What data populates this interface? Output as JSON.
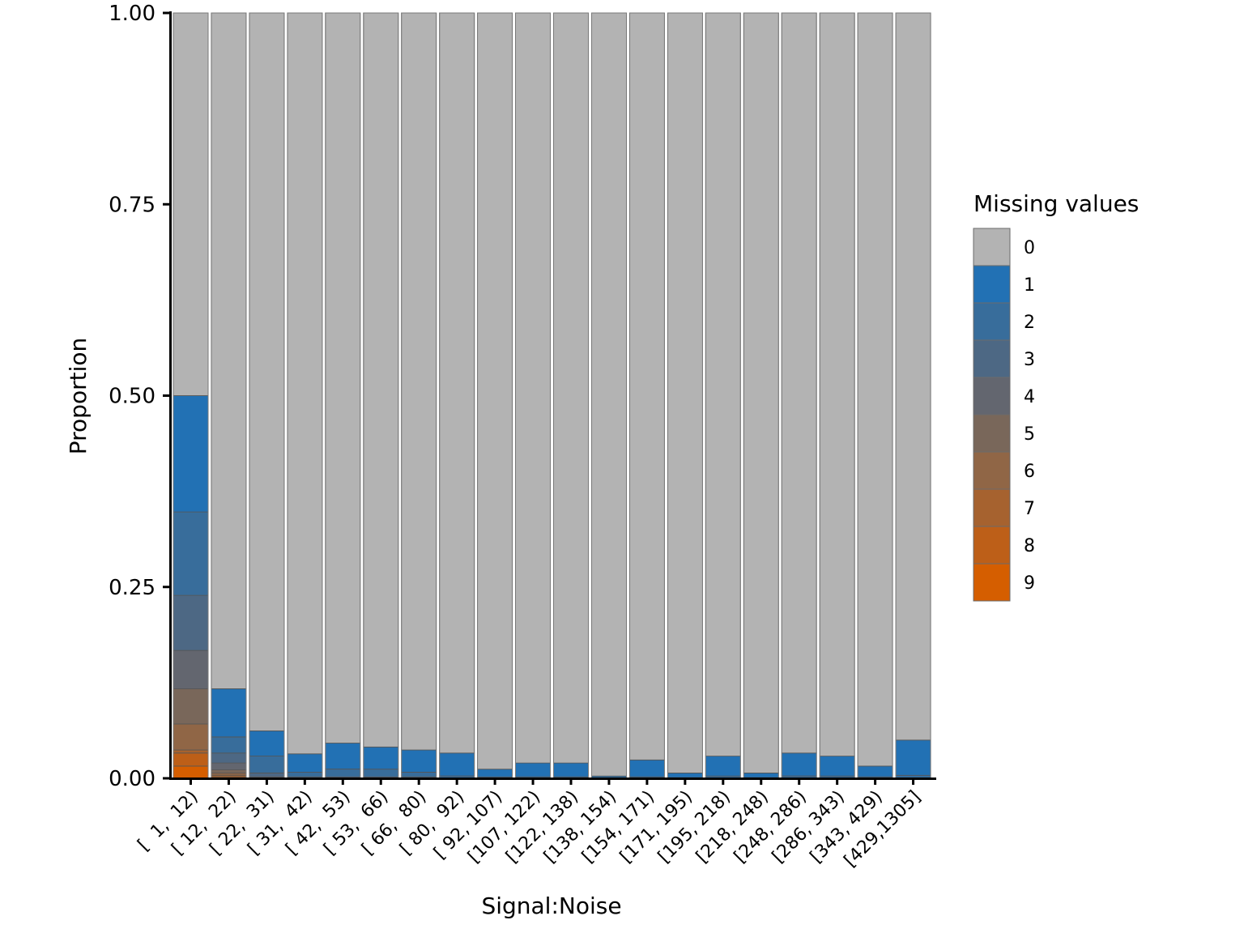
{
  "chart_data": {
    "type": "bar",
    "stacked": true,
    "normalized": true,
    "title": "",
    "xlabel": "Signal:Noise",
    "ylabel": "Proportion",
    "ylim": [
      0,
      1
    ],
    "yticks": [
      "0.00",
      "0.25",
      "0.50",
      "0.75",
      "1.00"
    ],
    "grid": false,
    "legend": {
      "title": "Missing values",
      "position": "right",
      "entries": [
        {
          "label": "0",
          "color": "#B3B3B3"
        },
        {
          "label": "1",
          "color": "#2271B4"
        },
        {
          "label": "2",
          "color": "#386D9B"
        },
        {
          "label": "3",
          "color": "#4D6884"
        },
        {
          "label": "4",
          "color": "#63666F"
        },
        {
          "label": "5",
          "color": "#79675A"
        },
        {
          "label": "6",
          "color": "#906646"
        },
        {
          "label": "7",
          "color": "#A6622F"
        },
        {
          "label": "8",
          "color": "#BD5F18"
        },
        {
          "label": "9",
          "color": "#D55E00"
        }
      ]
    },
    "categories": [
      "[  1,  12)",
      "[ 12,  22)",
      "[ 22,  31)",
      "[ 31,  42)",
      "[ 42,  53)",
      "[ 53,  66)",
      "[ 66,  80)",
      "[ 80,  92)",
      "[ 92, 107)",
      "[107, 122)",
      "[122, 138)",
      "[138, 154)",
      "[154, 171)",
      "[171, 195)",
      "[195, 218)",
      "[218, 248)",
      "[248, 286)",
      "[286, 343)",
      "[343, 429)",
      "[429,1305]"
    ],
    "series": [
      {
        "name": "0",
        "values": [
          0.5,
          0.883,
          0.938,
          0.968,
          0.954,
          0.959,
          0.963,
          0.967,
          0.988,
          0.98,
          0.98,
          0.997,
          0.976,
          0.993,
          0.971,
          0.993,
          0.967,
          0.971,
          0.984,
          0.95
        ]
      },
      {
        "name": "1",
        "values": [
          0.152,
          0.063,
          0.033,
          0.024,
          0.034,
          0.029,
          0.029,
          0.03,
          0.01,
          0.018,
          0.018,
          0.002,
          0.022,
          0.006,
          0.026,
          0.006,
          0.03,
          0.026,
          0.014,
          0.046
        ]
      },
      {
        "name": "2",
        "values": [
          0.109,
          0.021,
          0.022,
          0.006,
          0.01,
          0.01,
          0.006,
          0.003,
          0.002,
          0.002,
          0.002,
          0.001,
          0.002,
          0.001,
          0.003,
          0.001,
          0.003,
          0.003,
          0.002,
          0.004
        ]
      },
      {
        "name": "3",
        "values": [
          0.072,
          0.013,
          0.005,
          0.002,
          0.002,
          0.002,
          0.002,
          0.0,
          0.0,
          0.0,
          0.0,
          0.0,
          0.0,
          0.0,
          0.0,
          0.0,
          0.0,
          0.0,
          0.0,
          0.0
        ]
      },
      {
        "name": "4",
        "values": [
          0.05,
          0.009,
          0.002,
          0.0,
          0.0,
          0.0,
          0.0,
          0.0,
          0.0,
          0.0,
          0.0,
          0.0,
          0.0,
          0.0,
          0.0,
          0.0,
          0.0,
          0.0,
          0.0,
          0.0
        ]
      },
      {
        "name": "5",
        "values": [
          0.046,
          0.004,
          0.0,
          0.0,
          0.0,
          0.0,
          0.0,
          0.0,
          0.0,
          0.0,
          0.0,
          0.0,
          0.0,
          0.0,
          0.0,
          0.0,
          0.0,
          0.0,
          0.0,
          0.0
        ]
      },
      {
        "name": "6",
        "values": [
          0.034,
          0.003,
          0.0,
          0.0,
          0.0,
          0.0,
          0.0,
          0.0,
          0.0,
          0.0,
          0.0,
          0.0,
          0.0,
          0.0,
          0.0,
          0.0,
          0.0,
          0.0,
          0.0,
          0.0
        ]
      },
      {
        "name": "7",
        "values": [
          0.004,
          0.002,
          0.0,
          0.0,
          0.0,
          0.0,
          0.0,
          0.0,
          0.0,
          0.0,
          0.0,
          0.0,
          0.0,
          0.0,
          0.0,
          0.0,
          0.0,
          0.0,
          0.0,
          0.0
        ]
      },
      {
        "name": "8",
        "values": [
          0.017,
          0.002,
          0.0,
          0.0,
          0.0,
          0.0,
          0.0,
          0.0,
          0.0,
          0.0,
          0.0,
          0.0,
          0.0,
          0.0,
          0.0,
          0.0,
          0.0,
          0.0,
          0.0,
          0.0
        ]
      },
      {
        "name": "9",
        "values": [
          0.016,
          0.0,
          0.0,
          0.0,
          0.0,
          0.0,
          0.0,
          0.0,
          0.0,
          0.0,
          0.0,
          0.0,
          0.0,
          0.0,
          0.0,
          0.0,
          0.0,
          0.0,
          0.0,
          0.0
        ]
      }
    ]
  }
}
